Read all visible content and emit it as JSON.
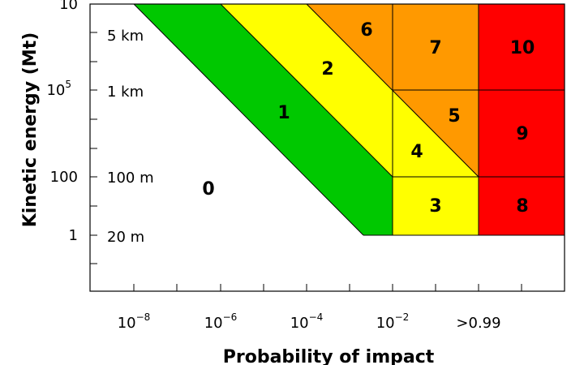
{
  "chart_data": {
    "type": "area",
    "title": "",
    "xlabel": "Probability of impact",
    "ylabel": "Kinetic energy (Mt)",
    "colors": {
      "zone_0": "#ffffff",
      "zone_1": "#00c800",
      "zones_2_3_4": "#ffff00",
      "zones_5_6_7": "#ff9900",
      "zones_8_9_10": "#ff0000"
    },
    "x_ticks": [
      {
        "base": "10",
        "exp": "−8"
      },
      {
        "base": "10",
        "exp": "−6"
      },
      {
        "base": "10",
        "exp": "−4"
      },
      {
        "base": "10",
        "exp": "−2"
      },
      {
        "base": ">0.99",
        "exp": ""
      }
    ],
    "y_ticks": [
      {
        "base": "10",
        "exp": ""
      },
      {
        "base": "10",
        "exp": "5"
      },
      {
        "base": "100",
        "exp": ""
      },
      {
        "base": "1",
        "exp": ""
      }
    ],
    "size_labels": [
      "5 km",
      "1 km",
      "100 m",
      "20 m"
    ],
    "zones": [
      {
        "label": "0",
        "color": "#ffffff"
      },
      {
        "label": "1",
        "color": "#00c800"
      },
      {
        "label": "2",
        "color": "#ffff00"
      },
      {
        "label": "3",
        "color": "#ffff00"
      },
      {
        "label": "4",
        "color": "#ffff00"
      },
      {
        "label": "5",
        "color": "#ff9900"
      },
      {
        "label": "6",
        "color": "#ff9900"
      },
      {
        "label": "7",
        "color": "#ff9900"
      },
      {
        "label": "8",
        "color": "#ff0000"
      },
      {
        "label": "9",
        "color": "#ff0000"
      },
      {
        "label": "10",
        "color": "#ff0000"
      }
    ],
    "grid": false,
    "legend": "none"
  }
}
